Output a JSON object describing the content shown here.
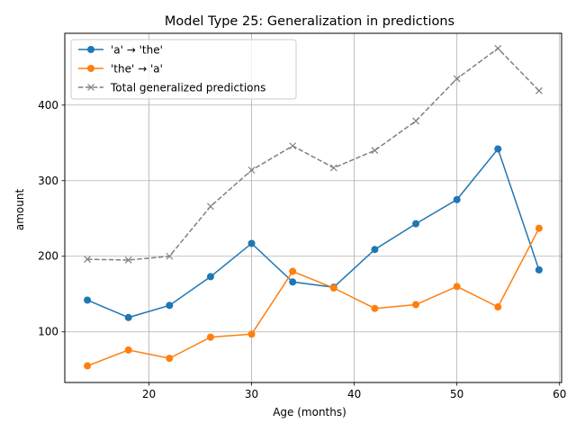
{
  "chart_data": {
    "type": "line",
    "title": "Model Type 25: Generalization in predictions",
    "xlabel": "Age (months)",
    "ylabel": "amount",
    "x": [
      14,
      18,
      22,
      26,
      30,
      34,
      38,
      42,
      46,
      50,
      54,
      58
    ],
    "xlim": [
      11.8,
      60.2
    ],
    "ylim": [
      33,
      495
    ],
    "xticks": [
      20,
      30,
      40,
      50,
      60
    ],
    "yticks": [
      100,
      200,
      300,
      400
    ],
    "grid": true,
    "legend_position": "upper left",
    "series": [
      {
        "name": "'a' → 'the'",
        "color": "#1f77b4",
        "marker": "circle",
        "linestyle": "solid",
        "values": [
          142,
          119,
          135,
          173,
          217,
          166,
          159,
          209,
          243,
          275,
          342,
          182
        ]
      },
      {
        "name": "'the' → 'a'",
        "color": "#ff7f0e",
        "marker": "circle",
        "linestyle": "solid",
        "values": [
          55,
          76,
          65,
          93,
          97,
          180,
          158,
          131,
          136,
          160,
          133,
          237
        ]
      },
      {
        "name": "Total generalized predictions",
        "color": "#808080",
        "marker": "x",
        "linestyle": "dashed",
        "values": [
          196,
          195,
          200,
          266,
          314,
          346,
          317,
          340,
          379,
          435,
          475,
          419
        ]
      }
    ]
  }
}
